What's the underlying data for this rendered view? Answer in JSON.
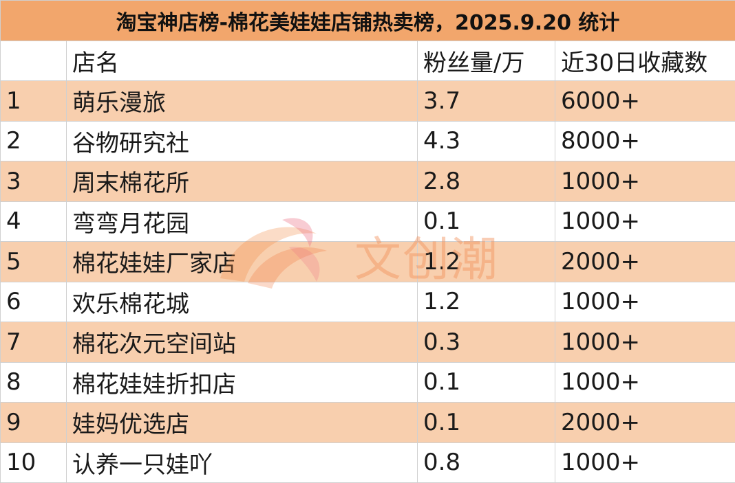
{
  "title": "淘宝神店榜-棉花美娃娃店铺热卖榜，2025.9.20 统计",
  "columns": {
    "rank": "",
    "name": "店名",
    "fans": "粉丝量/万",
    "favorites": "近30日收藏数"
  },
  "rows": [
    {
      "rank": "1",
      "name": "萌乐漫旅",
      "fans": "3.7",
      "favorites": "6000+"
    },
    {
      "rank": "2",
      "name": "谷物研究社",
      "fans": "4.3",
      "favorites": "8000+"
    },
    {
      "rank": "3",
      "name": "周末棉花所",
      "fans": "2.8",
      "favorites": "1000+"
    },
    {
      "rank": "4",
      "name": "弯弯月花园",
      "fans": "0.1",
      "favorites": "1000+"
    },
    {
      "rank": "5",
      "name": "棉花娃娃厂家店",
      "fans": "1.2",
      "favorites": "2000+"
    },
    {
      "rank": "6",
      "name": "欢乐棉花城",
      "fans": "1.2",
      "favorites": "1000+"
    },
    {
      "rank": "7",
      "name": "棉花次元空间站",
      "fans": "0.3",
      "favorites": "1000+"
    },
    {
      "rank": "8",
      "name": "棉花娃娃折扣店",
      "fans": "0.1",
      "favorites": "1000+"
    },
    {
      "rank": "9",
      "name": "娃妈优选店",
      "fans": "0.1",
      "favorites": "2000+"
    },
    {
      "rank": "10",
      "name": "认养一只娃吖",
      "fans": "0.8",
      "favorites": "1000+"
    }
  ],
  "watermark": {
    "text": "文创潮",
    "icon": "flame-logo-icon"
  },
  "colors": {
    "title_bg": "#f2a66c",
    "stripe_bg": "#f8cfae",
    "watermark": "#f2915a"
  }
}
